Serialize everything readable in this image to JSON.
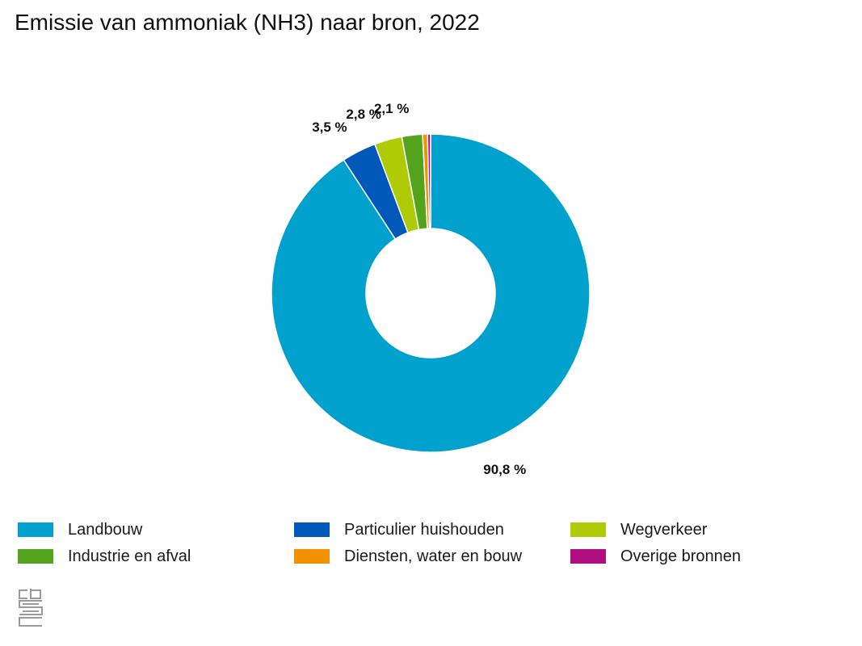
{
  "title": "Emissie van ammoniak (NH3) naar bron, 2022",
  "chart_data": {
    "type": "pie",
    "title": "Emissie van ammoniak (NH3) naar bron, 2022",
    "donut": true,
    "legend_position": "bottom",
    "unit": "%",
    "series": [
      {
        "name": "Landbouw",
        "value": 90.8,
        "label": "90,8 %",
        "color": "#00a1cd"
      },
      {
        "name": "Particulier huishouden",
        "value": 3.5,
        "label": "3,5 %",
        "color": "#0058b8"
      },
      {
        "name": "Wegverkeer",
        "value": 2.8,
        "label": "2,8 %",
        "color": "#afcb05"
      },
      {
        "name": "Industrie en afval",
        "value": 2.1,
        "label": "2,1 %",
        "color": "#53a31d"
      },
      {
        "name": "Diensten, water en bouw",
        "value": 0.5,
        "label": "",
        "color": "#f39200"
      },
      {
        "name": "Overige bronnen",
        "value": 0.3,
        "label": "",
        "color": "#af0e80"
      }
    ]
  },
  "logo": {
    "name": "cbs",
    "color": "#9a9a9a"
  }
}
